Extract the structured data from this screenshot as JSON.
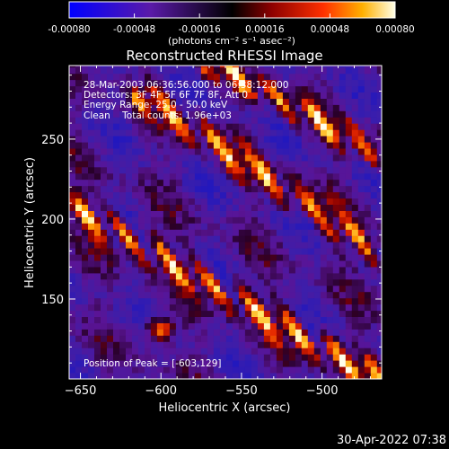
{
  "chart_data": {
    "type": "heatmap",
    "title": "Reconstructed RHESSI Image",
    "xlabel": "Heliocentric X (arcsec)",
    "ylabel": "Heliocentric Y (arcsec)",
    "xlim": [
      -657,
      -463
    ],
    "ylim": [
      100,
      296
    ],
    "x_ticks": [
      -650,
      -600,
      -550,
      -500
    ],
    "y_ticks": [
      150,
      200,
      250
    ],
    "colorbar": {
      "ticks": [
        "-0.00080",
        "-0.00048",
        "-0.00016",
        "0.00016",
        "0.00048",
        "0.00080"
      ],
      "unit_label": "(photons cm⁻² s⁻¹ asec⁻²)",
      "range": [
        -0.0008,
        0.0008
      ]
    },
    "annotations": [
      "28-Mar-2003 06:36:56.000 to 06:38:12.000",
      "Detectors: 3F 4F 5F 6F 7F 8F, Att 0",
      "Energy Range: 25.0 - 50.0 keV",
      "Clean    Total counts: 1.96e+03"
    ],
    "peak_label": "Position of Peak = [-603,129]",
    "peak": [
      -603,
      129
    ],
    "bright_ridges": [
      {
        "x": [
          -655,
          -470
        ],
        "y": [
          205,
          100
        ]
      },
      {
        "x": [
          -612,
          -465
        ],
        "y": [
          275,
          175
        ]
      },
      {
        "x": [
          -570,
          -470
        ],
        "y": [
          295,
          240
        ]
      }
    ],
    "grid": false
  },
  "footer_timestamp": "30-Apr-2022 07:38"
}
